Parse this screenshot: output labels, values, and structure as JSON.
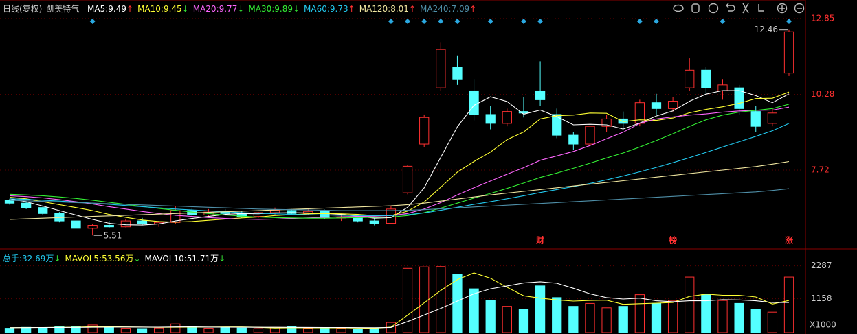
{
  "chart_data": {
    "type": "candlestick",
    "period": "日线(复权)",
    "title": "凯美特气",
    "up_color": "#ff3030",
    "down_color": "#54ffff",
    "ylim": [
      5.12,
      13.01
    ],
    "yticks": [
      7.72,
      10.28,
      12.85
    ],
    "open": [
      6.7,
      6.6,
      6.45,
      6.25,
      6.0,
      5.75,
      5.85,
      5.8,
      6.0,
      5.9,
      5.95,
      6.35,
      6.2,
      6.3,
      6.25,
      6.15,
      6.28,
      6.35,
      6.25,
      6.32,
      6.1,
      6.12,
      6.0,
      5.92,
      6.95,
      8.6,
      10.5,
      11.2,
      10.4,
      9.6,
      9.3,
      9.7,
      10.4,
      9.6,
      8.9,
      8.6,
      9.2,
      9.45,
      9.3,
      10.0,
      9.8,
      10.5,
      11.1,
      10.4,
      10.5,
      9.7,
      9.3,
      11.0
    ],
    "high": [
      6.75,
      6.65,
      6.5,
      6.3,
      6.05,
      5.9,
      6.0,
      6.05,
      6.1,
      6.0,
      6.5,
      6.45,
      6.4,
      6.4,
      6.35,
      6.3,
      6.45,
      6.4,
      6.4,
      6.38,
      6.2,
      6.15,
      6.1,
      6.5,
      7.9,
      9.6,
      12.05,
      11.6,
      10.8,
      9.9,
      9.8,
      10.2,
      11.4,
      9.8,
      9.0,
      9.3,
      9.6,
      9.7,
      10.1,
      10.3,
      10.2,
      11.5,
      11.2,
      10.8,
      10.6,
      9.9,
      9.8,
      12.46
    ],
    "low": [
      6.55,
      6.4,
      6.2,
      5.95,
      5.7,
      5.51,
      5.75,
      5.78,
      5.85,
      5.8,
      5.9,
      6.15,
      6.15,
      6.18,
      6.1,
      6.1,
      6.2,
      6.2,
      6.2,
      6.05,
      6.0,
      5.95,
      5.85,
      5.92,
      6.9,
      8.5,
      10.4,
      10.6,
      9.4,
      9.1,
      9.2,
      9.5,
      9.9,
      8.8,
      8.4,
      8.55,
      9.0,
      9.1,
      9.2,
      9.6,
      9.7,
      10.4,
      10.3,
      10.1,
      9.6,
      9.0,
      9.2,
      10.9
    ],
    "close": [
      6.6,
      6.45,
      6.25,
      6.0,
      5.75,
      5.85,
      5.8,
      6.0,
      5.9,
      5.95,
      6.35,
      6.2,
      6.3,
      6.25,
      6.15,
      6.28,
      6.35,
      6.25,
      6.32,
      6.1,
      6.12,
      6.0,
      5.92,
      6.4,
      7.85,
      9.5,
      11.8,
      10.8,
      9.6,
      9.3,
      9.7,
      9.65,
      10.1,
      8.9,
      8.6,
      9.2,
      9.45,
      9.3,
      10.0,
      9.8,
      10.05,
      11.1,
      10.5,
      10.6,
      9.8,
      9.2,
      9.65,
      12.4
    ],
    "ma": [
      {
        "name": "MA5:",
        "color": "#ffffff",
        "current": 9.49,
        "trend": "↑",
        "trend_color": "#ff3030",
        "values": [
          6.75,
          6.65,
          6.5,
          6.35,
          6.2,
          6.05,
          5.92,
          5.87,
          5.86,
          5.9,
          6.0,
          6.08,
          6.15,
          6.22,
          6.25,
          6.24,
          6.27,
          6.28,
          6.27,
          6.25,
          6.22,
          6.16,
          6.09,
          6.11,
          6.46,
          7.12,
          8.15,
          9.18,
          9.91,
          10.2,
          10.04,
          9.61,
          9.75,
          9.53,
          9.25,
          9.27,
          9.25,
          9.11,
          9.31,
          9.55,
          9.72,
          10.05,
          10.29,
          10.41,
          10.41,
          10.24,
          10.0,
          10.3
        ]
      },
      {
        "name": "MA10:",
        "color": "#ffff33",
        "current": 9.45,
        "trend": "↓",
        "trend_color": "#33dd33",
        "values": [
          6.8,
          6.75,
          6.65,
          6.55,
          6.45,
          6.35,
          6.22,
          6.12,
          6.03,
          5.98,
          5.96,
          5.98,
          6.02,
          6.06,
          6.1,
          6.13,
          6.18,
          6.21,
          6.24,
          6.25,
          6.24,
          6.22,
          6.18,
          6.18,
          6.33,
          6.64,
          7.14,
          7.65,
          8.01,
          8.33,
          8.75,
          9.01,
          9.45,
          9.56,
          9.58,
          9.65,
          9.64,
          9.36,
          9.42,
          9.4,
          9.48,
          9.66,
          9.77,
          9.86,
          9.98,
          10.14,
          10.15,
          10.36
        ]
      },
      {
        "name": "MA20:",
        "color": "#ff66ff",
        "current": 9.77,
        "trend": "↓",
        "trend_color": "#33dd33",
        "values": [
          6.85,
          6.82,
          6.78,
          6.72,
          6.65,
          6.57,
          6.48,
          6.4,
          6.32,
          6.25,
          6.19,
          6.15,
          6.11,
          6.08,
          6.06,
          6.05,
          6.06,
          6.08,
          6.1,
          6.12,
          6.14,
          6.15,
          6.16,
          6.18,
          6.25,
          6.4,
          6.62,
          6.88,
          7.12,
          7.35,
          7.58,
          7.8,
          8.05,
          8.2,
          8.35,
          8.55,
          8.78,
          9.0,
          9.3,
          9.45,
          9.52,
          9.58,
          9.62,
          9.68,
          9.72,
          9.74,
          9.75,
          9.85
        ]
      },
      {
        "name": "MA30:",
        "color": "#33ee33",
        "current": 9.89,
        "trend": "↓",
        "trend_color": "#33dd33",
        "values": [
          6.9,
          6.88,
          6.85,
          6.81,
          6.76,
          6.7,
          6.63,
          6.56,
          6.49,
          6.42,
          6.36,
          6.3,
          6.25,
          6.2,
          6.16,
          6.13,
          6.11,
          6.1,
          6.09,
          6.09,
          6.1,
          6.11,
          6.12,
          6.13,
          6.18,
          6.28,
          6.43,
          6.6,
          6.77,
          6.93,
          7.1,
          7.28,
          7.47,
          7.62,
          7.78,
          7.95,
          8.13,
          8.3,
          8.5,
          8.72,
          8.95,
          9.2,
          9.42,
          9.58,
          9.68,
          9.74,
          9.8,
          9.95
        ]
      },
      {
        "name": "MA60:",
        "color": "#22c8ee",
        "current": 9.73,
        "trend": "↑",
        "trend_color": "#ff3030",
        "values": [
          6.75,
          6.73,
          6.7,
          6.67,
          6.64,
          6.6,
          6.56,
          6.52,
          6.48,
          6.44,
          6.4,
          6.37,
          6.34,
          6.31,
          6.28,
          6.26,
          6.24,
          6.22,
          6.21,
          6.2,
          6.19,
          6.18,
          6.18,
          6.18,
          6.21,
          6.27,
          6.36,
          6.46,
          6.56,
          6.65,
          6.75,
          6.85,
          6.96,
          7.06,
          7.16,
          7.27,
          7.39,
          7.52,
          7.66,
          7.81,
          7.97,
          8.14,
          8.32,
          8.5,
          8.68,
          8.86,
          9.05,
          9.3
        ]
      },
      {
        "name": "MA120:",
        "color": "#f0e6a0",
        "current": 8.01,
        "trend": "↑",
        "trend_color": "#ff3030",
        "values": [
          6.05,
          6.07,
          6.09,
          6.11,
          6.13,
          6.15,
          6.17,
          6.19,
          6.21,
          6.23,
          6.25,
          6.27,
          6.29,
          6.31,
          6.33,
          6.35,
          6.37,
          6.39,
          6.41,
          6.43,
          6.45,
          6.47,
          6.49,
          6.51,
          6.55,
          6.6,
          6.67,
          6.74,
          6.81,
          6.88,
          6.94,
          7.0,
          7.06,
          7.12,
          7.18,
          7.24,
          7.3,
          7.36,
          7.42,
          7.48,
          7.54,
          7.6,
          7.66,
          7.72,
          7.78,
          7.84,
          7.92,
          8.01
        ]
      },
      {
        "name": "MA240:",
        "color": "#4f8fa8",
        "current": 7.09,
        "trend": "↑",
        "trend_color": "#ff3030",
        "values": [
          6.7,
          6.68,
          6.66,
          6.64,
          6.62,
          6.6,
          6.58,
          6.56,
          6.54,
          6.52,
          6.5,
          6.48,
          6.46,
          6.44,
          6.42,
          6.4,
          6.39,
          6.38,
          6.37,
          6.36,
          6.35,
          6.35,
          6.35,
          6.35,
          6.36,
          6.38,
          6.41,
          6.44,
          6.47,
          6.5,
          6.53,
          6.56,
          6.59,
          6.62,
          6.65,
          6.68,
          6.71,
          6.74,
          6.77,
          6.8,
          6.83,
          6.86,
          6.89,
          6.92,
          6.95,
          6.98,
          7.03,
          7.09
        ]
      }
    ],
    "events": [
      5,
      23,
      24,
      25,
      26,
      27,
      29,
      31,
      32,
      38,
      39,
      43,
      47
    ],
    "markers": [
      {
        "text": "财",
        "index": 32
      },
      {
        "text": "榜",
        "index": 40
      },
      {
        "text": "涨",
        "index": 47
      }
    ],
    "volume": {
      "ylim": [
        0,
        2700
      ],
      "yticks": [
        1158,
        2287
      ],
      "unit_label": "X1000",
      "values": [
        150,
        180,
        160,
        200,
        220,
        260,
        180,
        150,
        140,
        160,
        300,
        200,
        150,
        170,
        160,
        140,
        180,
        200,
        150,
        170,
        140,
        130,
        160,
        350,
        2200,
        2250,
        2260,
        2000,
        1500,
        1100,
        900,
        800,
        1600,
        1200,
        900,
        1000,
        850,
        900,
        1300,
        1000,
        1100,
        1900,
        1300,
        1100,
        1000,
        800,
        700,
        1900
      ],
      "header": [
        {
          "name": "总手:",
          "color": "#22c8ee",
          "current": 32.69,
          "unit": "万",
          "trend": "↓",
          "trend_color": "#33dd33"
        },
        {
          "name": "MAVOL5:",
          "color": "#ffff33",
          "current": 53.56,
          "unit": "万",
          "trend": "↓",
          "trend_color": "#33dd33"
        },
        {
          "name": "MAVOL10:",
          "color": "#ffffff",
          "current": 51.71,
          "unit": "万",
          "trend": "↓",
          "trend_color": "#33dd33"
        }
      ],
      "ma": [
        {
          "color": "#ffff33",
          "values": [
            170,
            175,
            175,
            180,
            185,
            204,
            204,
            194,
            190,
            182,
            186,
            190,
            190,
            196,
            196,
            184,
            160,
            170,
            166,
            164,
            168,
            158,
            150,
            190,
            596,
            1018,
            1444,
            1812,
            2042,
            1862,
            1552,
            1260,
            1180,
            1120,
            1080,
            1100,
            1110,
            970,
            990,
            1010,
            1030,
            1240,
            1320,
            1280,
            1280,
            1220,
            980,
            1100
          ]
        },
        {
          "color": "#ffffff",
          "values": [
            170,
            172,
            175,
            178,
            180,
            185,
            190,
            192,
            190,
            188,
            195,
            197,
            190,
            188,
            186,
            184,
            182,
            180,
            178,
            175,
            175,
            171,
            170,
            178,
            380,
            600,
            830,
            1080,
            1330,
            1500,
            1600,
            1700,
            1740,
            1690,
            1520,
            1330,
            1200,
            1150,
            1180,
            1090,
            1060,
            1090,
            1090,
            1130,
            1120,
            1090,
            1030,
            1030
          ]
        }
      ]
    }
  }
}
